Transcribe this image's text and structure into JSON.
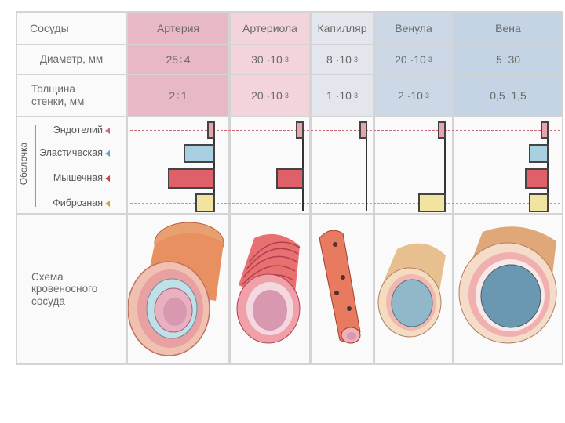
{
  "header": {
    "row_label": "Сосуды",
    "columns": [
      "Артерия",
      "Артериола",
      "Капилляр",
      "Венула",
      "Вена"
    ]
  },
  "diameter": {
    "label": "Диаметр, мм",
    "values": [
      {
        "base": "25÷4",
        "exp": ""
      },
      {
        "base": "30 ·10",
        "exp": "-3"
      },
      {
        "base": "8 ·10",
        "exp": "-3"
      },
      {
        "base": "20 ·10",
        "exp": "-3"
      },
      {
        "base": "5÷30",
        "exp": ""
      }
    ]
  },
  "thickness": {
    "label_line1": "Толщина",
    "label_line2": "стенки, мм",
    "values": [
      {
        "base": "2÷1",
        "exp": ""
      },
      {
        "base": "20 ·10",
        "exp": "-3"
      },
      {
        "base": "1 ·10",
        "exp": "-3"
      },
      {
        "base": "2 ·10",
        "exp": "-3"
      },
      {
        "base": "0,5÷1,5",
        "exp": ""
      }
    ]
  },
  "layers": {
    "group_label": "Оболочка",
    "items": [
      {
        "name": "Эндотелий",
        "color": "#e8a4ac",
        "marker": "#c96b7a"
      },
      {
        "name": "Эластическая",
        "color": "#a8d0e0",
        "marker": "#5aa8d0"
      },
      {
        "name": "Мышечная",
        "color": "#e0606a",
        "marker": "#c94050"
      },
      {
        "name": "Фиброзная",
        "color": "#f0e4a0",
        "marker": "#c8a830"
      }
    ]
  },
  "chart_data": {
    "type": "bar",
    "categories": [
      "Артерия",
      "Артериола",
      "Капилляр",
      "Венула",
      "Вена"
    ],
    "series": [
      {
        "name": "Эндотелий",
        "values": [
          1,
          1,
          1,
          1,
          1
        ]
      },
      {
        "name": "Эластическая",
        "values": [
          4,
          0,
          0,
          0,
          2.5
        ]
      },
      {
        "name": "Мышечная",
        "values": [
          6,
          3.5,
          0,
          0,
          3
        ]
      },
      {
        "name": "Фиброзная",
        "values": [
          2.5,
          0,
          0,
          3.5,
          2.5
        ]
      }
    ]
  },
  "schema": {
    "label_line1": "Схема",
    "label_line2": "кровеносного",
    "label_line3": "сосуда"
  }
}
